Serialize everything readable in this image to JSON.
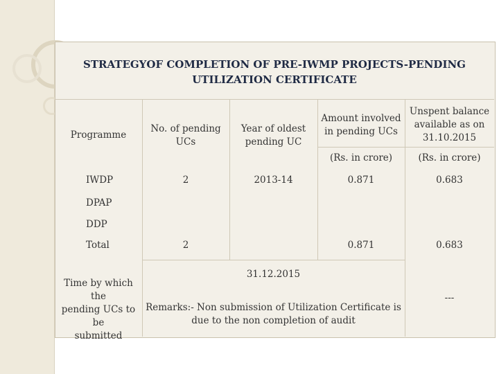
{
  "title_line1": "STRATEGYOF COMPLETION OF PRE-IWMP PROJECTS-PENDING",
  "title_line2": "UTILIZATION CERTIFICATE",
  "headers": {
    "programme": "Programme",
    "no_pending_l1": "No. of pending",
    "no_pending_l2": "UCs",
    "year_oldest_l1": "Year of oldest",
    "year_oldest_l2": "pending UC",
    "amount_l1": "Amount involved",
    "amount_l2": "in pending UCs",
    "unspent_l1": "Unspent balance",
    "unspent_l2": "available as on",
    "unspent_l3": "31.10.2015",
    "unit_amount": "(Rs. in crore)",
    "unit_unspent": "(Rs. in crore)"
  },
  "rows": [
    {
      "programme": "IWDP",
      "no_pending": "2",
      "year_oldest": "2013-14",
      "amount": "0.871",
      "unspent": "0.683"
    },
    {
      "programme": "DPAP"
    },
    {
      "programme": "DDP"
    },
    {
      "programme": "Total",
      "no_pending": "2",
      "amount": "0.871",
      "unspent": "0.683"
    }
  ],
  "footer": {
    "label_l1": "Time by which the",
    "label_l2": "pending UCs to be",
    "label_l3": "submitted",
    "date": "31.12.2015",
    "remarks_l1": "Remarks:- Non submission of Utilization Certificate is",
    "remarks_l2": "due to the non completion of audit",
    "last_col": "---"
  }
}
